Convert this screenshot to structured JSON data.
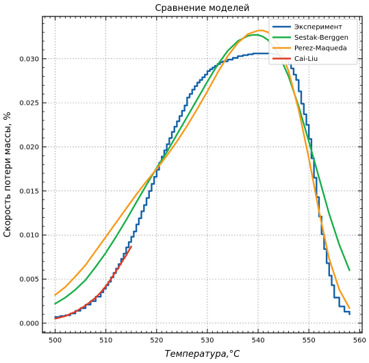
{
  "chart_data": {
    "type": "line",
    "title": "Сравнение моделей",
    "xlabel": "Температура,°C",
    "ylabel": "Скорость потери массы, %",
    "xlim": [
      497.5,
      560.5
    ],
    "ylim": [
      -0.0011,
      0.0348
    ],
    "xticks": [
      500,
      510,
      520,
      530,
      540,
      550,
      560
    ],
    "xtick_labels": [
      "500",
      "510",
      "520",
      "530",
      "540",
      "550",
      "560"
    ],
    "yticks": [
      0.0,
      0.005,
      0.01,
      0.015,
      0.02,
      0.025,
      0.03
    ],
    "ytick_labels": [
      "0.000",
      "0.005",
      "0.010",
      "0.015",
      "0.020",
      "0.025",
      "0.030"
    ],
    "grid": true,
    "legend_position": "top-right",
    "series": [
      {
        "name": "Эксперимент",
        "color": "#1460a8",
        "step": true,
        "x": [
          500.0,
          501.0,
          502.0,
          503.0,
          504.0,
          505.0,
          506.0,
          507.0,
          508.0,
          509.0,
          509.5,
          510.0,
          510.5,
          511.0,
          511.5,
          512.0,
          512.5,
          513.0,
          513.5,
          514.0,
          514.5,
          515.0,
          515.5,
          516.0,
          516.5,
          517.0,
          517.5,
          518.0,
          518.5,
          519.0,
          519.5,
          520.0,
          520.5,
          521.0,
          521.5,
          522.0,
          522.5,
          523.0,
          523.5,
          524.0,
          524.5,
          525.0,
          525.5,
          526.0,
          526.5,
          527.0,
          527.5,
          528.0,
          528.5,
          529.0,
          529.5,
          530.0,
          530.5,
          531.0,
          531.5,
          532.0,
          532.5,
          533.0,
          534.0,
          535.0,
          536.0,
          537.0,
          538.0,
          539.0,
          540.0,
          541.0,
          542.0,
          543.0,
          544.0,
          545.0,
          545.5,
          546.0,
          546.5,
          547.0,
          547.5,
          548.0,
          548.5,
          549.0,
          549.5,
          550.0,
          550.5,
          551.0,
          551.5,
          552.0,
          552.5,
          553.0,
          553.5,
          554.0,
          554.5,
          555.0,
          556.0,
          557.0,
          558.0
        ],
        "y": [
          0.0007,
          0.0008,
          0.0009,
          0.0011,
          0.0014,
          0.0017,
          0.0021,
          0.0025,
          0.003,
          0.0035,
          0.0039,
          0.0043,
          0.0047,
          0.0052,
          0.0057,
          0.0062,
          0.0067,
          0.0073,
          0.0079,
          0.0086,
          0.0092,
          0.0098,
          0.0104,
          0.0112,
          0.0119,
          0.0127,
          0.0134,
          0.0142,
          0.015,
          0.0158,
          0.0166,
          0.0174,
          0.0182,
          0.0189,
          0.0196,
          0.0203,
          0.021,
          0.0217,
          0.0223,
          0.0229,
          0.0235,
          0.0241,
          0.0247,
          0.0256,
          0.026,
          0.0265,
          0.0269,
          0.0273,
          0.0276,
          0.0279,
          0.0282,
          0.0286,
          0.0288,
          0.029,
          0.0292,
          0.0294,
          0.0296,
          0.0297,
          0.0299,
          0.0301,
          0.0303,
          0.0304,
          0.0305,
          0.0306,
          0.0306,
          0.0306,
          0.0306,
          0.0305,
          0.0303,
          0.0301,
          0.0298,
          0.0294,
          0.0289,
          0.0282,
          0.0276,
          0.0263,
          0.0249,
          0.0237,
          0.0225,
          0.0209,
          0.0187,
          0.0165,
          0.0143,
          0.0121,
          0.0101,
          0.0084,
          0.0068,
          0.0054,
          0.0043,
          0.0029,
          0.0019,
          0.0013,
          0.001
        ]
      },
      {
        "name": "Sestak-Berggen",
        "color": "#1aae4a",
        "step": false,
        "x": [
          500,
          502,
          504,
          506,
          508,
          510,
          512,
          514,
          516,
          518,
          520,
          522,
          524,
          526,
          528,
          530,
          532,
          534,
          536,
          538,
          539,
          540,
          541,
          542,
          544,
          546,
          548,
          550,
          552,
          554,
          556,
          558
        ],
        "y": [
          0.0022,
          0.0029,
          0.0038,
          0.0049,
          0.0064,
          0.008,
          0.0098,
          0.0117,
          0.0137,
          0.0157,
          0.0176,
          0.0194,
          0.0214,
          0.0234,
          0.0254,
          0.0274,
          0.0293,
          0.0309,
          0.032,
          0.0326,
          0.0327,
          0.0327,
          0.0325,
          0.0321,
          0.0306,
          0.028,
          0.0246,
          0.0206,
          0.0165,
          0.0124,
          0.0089,
          0.006
        ]
      },
      {
        "name": "Perez-Maqueda",
        "color": "#f59a1c",
        "step": false,
        "x": [
          500,
          502,
          504,
          506,
          508,
          510,
          512,
          514,
          516,
          518,
          520,
          522,
          524,
          526,
          528,
          530,
          532,
          534,
          536,
          538,
          540,
          541,
          542,
          544,
          546,
          548,
          550,
          552,
          554,
          556,
          558
        ],
        "y": [
          0.0032,
          0.0041,
          0.0053,
          0.0066,
          0.0082,
          0.0098,
          0.0114,
          0.013,
          0.0146,
          0.0161,
          0.0175,
          0.019,
          0.0206,
          0.0224,
          0.0243,
          0.0263,
          0.0284,
          0.0303,
          0.0318,
          0.0328,
          0.0332,
          0.0332,
          0.033,
          0.0316,
          0.0286,
          0.0242,
          0.0187,
          0.0127,
          0.0073,
          0.0038,
          0.0017
        ]
      },
      {
        "name": "Cai-Liu",
        "color": "#e23a22",
        "step": false,
        "x": [
          500,
          502,
          504,
          506,
          508,
          509,
          510,
          511,
          512,
          513,
          514,
          515
        ],
        "y": [
          0.0005,
          0.0008,
          0.0013,
          0.002,
          0.0029,
          0.0035,
          0.0042,
          0.005,
          0.0059,
          0.0068,
          0.0077,
          0.0087
        ]
      }
    ]
  }
}
